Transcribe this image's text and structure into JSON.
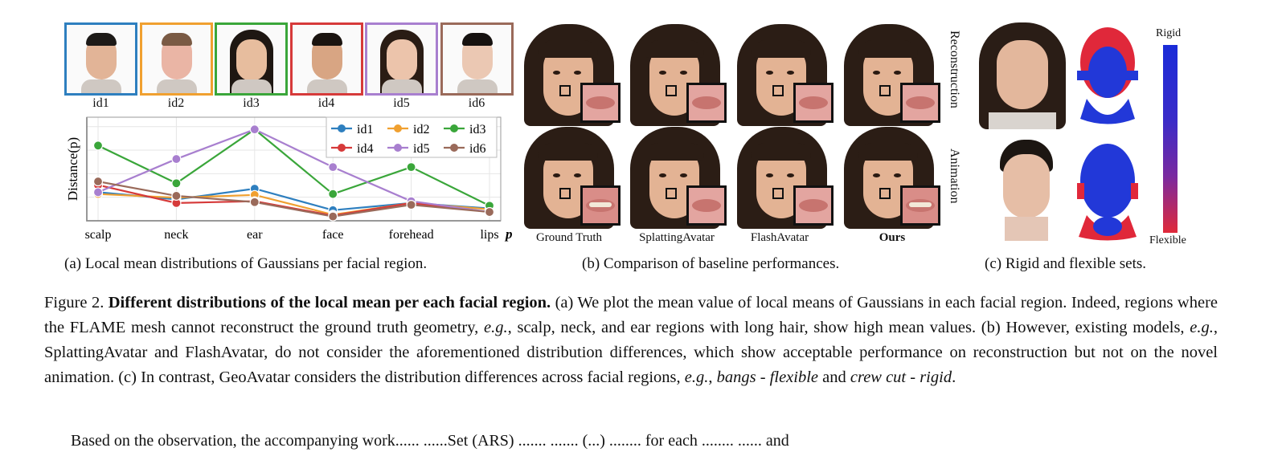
{
  "panel_a": {
    "ids": [
      "id1",
      "id2",
      "id3",
      "id4",
      "id5",
      "id6"
    ],
    "id_colors": [
      "#2e7fbf",
      "#f0a030",
      "#3aa63a",
      "#d63a3a",
      "#a87fcf",
      "#9a6a5a"
    ],
    "caption": "(a) Local mean distributions of Gaussians per facial region.",
    "p_symbol": "p"
  },
  "chart_data": {
    "type": "line",
    "ylabel": "Distance(p)",
    "xlabel": "p",
    "categories": [
      "scalp",
      "neck",
      "ear",
      "face",
      "forehead",
      "lips"
    ],
    "series": [
      {
        "name": "id1",
        "color": "#2e7fbf",
        "values": [
          0.3,
          0.22,
          0.34,
          0.1,
          0.18,
          0.12
        ]
      },
      {
        "name": "id2",
        "color": "#f0a030",
        "values": [
          0.28,
          0.24,
          0.27,
          0.05,
          0.18,
          0.11
        ]
      },
      {
        "name": "id3",
        "color": "#3aa63a",
        "values": [
          0.82,
          0.4,
          1.0,
          0.28,
          0.58,
          0.15
        ]
      },
      {
        "name": "id4",
        "color": "#d63a3a",
        "values": [
          0.38,
          0.18,
          0.2,
          0.04,
          0.18,
          0.08
        ]
      },
      {
        "name": "id5",
        "color": "#a87fcf",
        "values": [
          0.3,
          0.67,
          1.0,
          0.58,
          0.2,
          0.08
        ]
      },
      {
        "name": "id6",
        "color": "#9a6a5a",
        "values": [
          0.42,
          0.26,
          0.19,
          0.03,
          0.16,
          0.08
        ]
      }
    ],
    "ylim": [
      0,
      1.1
    ],
    "grid": true,
    "legend_placement": "top-right"
  },
  "panel_b": {
    "columns": [
      "Ground Truth",
      "SplattingAvatar",
      "FlashAvatar",
      "Ours"
    ],
    "rows": [
      "Reconstruction",
      "Animation"
    ],
    "caption": "(b) Comparison of baseline performances."
  },
  "panel_c": {
    "colorbar_top": "Rigid",
    "colorbar_bottom": "Flexible",
    "caption": "(c) Rigid and flexible sets."
  },
  "figure_caption": {
    "label": "Figure 2.",
    "title": "Different distributions of the local mean per each facial region.",
    "body_1": " (a) We plot the mean value of local means of Gaussians in each facial region. Indeed, regions where the FLAME mesh cannot reconstruct the ground truth geometry, ",
    "eg1": "e.g.",
    "body_2": ", scalp, neck, and ear regions with long hair, show high mean values. (b) However, existing models, ",
    "eg2": "e.g.",
    "body_3": ", SplattingAvatar and FlashAvatar, do not consider the aforementioned distribution differences, which show acceptable performance on reconstruction but not on the novel animation. (c) In contrast, GeoAvatar considers the distribution differences across facial regions, ",
    "eg3": "e.g.",
    "body_4": ", ",
    "bangs": "bangs - flexible",
    "body_5": " and ",
    "crew": "crew cut - rigid",
    "body_6": "."
  },
  "bottom_text": "Based on the observation, the accompanying work...... ......Set (ARS) ....... ....... (...) ........ for each ........ ...... and"
}
